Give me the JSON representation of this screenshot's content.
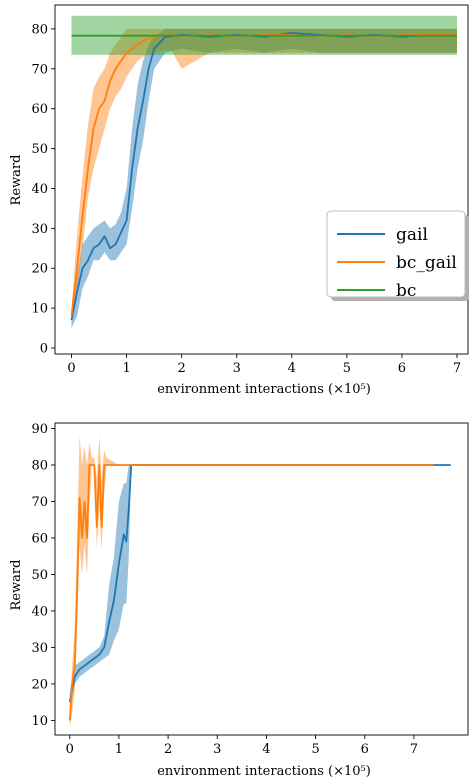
{
  "colors": {
    "gail": "#1f77b4",
    "bc_gail": "#ff7f0e",
    "bc": "#2ca02c"
  },
  "chart_data": [
    {
      "type": "line",
      "xlabel": "environment interactions (×10⁵)",
      "ylabel": "Reward",
      "xlim": [
        -0.3,
        7.2
      ],
      "ylim": [
        -1.5,
        86
      ],
      "xticks": [
        "0",
        "1",
        "2",
        "3",
        "4",
        "5",
        "6",
        "7"
      ],
      "yticks": [
        "0",
        "10",
        "20",
        "30",
        "40",
        "50",
        "60",
        "70",
        "80"
      ],
      "grid": false,
      "legend": {
        "placement": "center-right",
        "entries": [
          "gail",
          "bc_gail",
          "bc"
        ]
      },
      "series": [
        {
          "name": "gail",
          "color": "#1f77b4",
          "x": [
            0,
            0.1,
            0.2,
            0.3,
            0.4,
            0.5,
            0.6,
            0.7,
            0.8,
            0.9,
            1.0,
            1.1,
            1.2,
            1.3,
            1.4,
            1.5,
            1.7,
            2.0,
            2.5,
            3.0,
            3.5,
            4.0,
            4.5,
            5.0,
            5.5,
            6.0,
            6.5,
            7.0
          ],
          "y": [
            7,
            14,
            20,
            22,
            25,
            26,
            28,
            25,
            26,
            29,
            32,
            45,
            55,
            62,
            70,
            75,
            78,
            78.5,
            78,
            78.5,
            78,
            79,
            78.5,
            78,
            78.5,
            78,
            78.5,
            78.5
          ],
          "lower": [
            5,
            8,
            15,
            18,
            22,
            22,
            24,
            22,
            22,
            24,
            26,
            35,
            45,
            52,
            62,
            70,
            74,
            75,
            74,
            75,
            74,
            75,
            74,
            74,
            74,
            74,
            74,
            74
          ],
          "upper": [
            10,
            18,
            26,
            28,
            30,
            31,
            32,
            30,
            31,
            34,
            40,
            55,
            66,
            72,
            76,
            78,
            80,
            80,
            80,
            80,
            80,
            80,
            80,
            80,
            80,
            80,
            80,
            80
          ]
        },
        {
          "name": "bc_gail",
          "color": "#ff7f0e",
          "x": [
            0,
            0.1,
            0.2,
            0.3,
            0.4,
            0.5,
            0.6,
            0.7,
            0.8,
            0.9,
            1.0,
            1.1,
            1.2,
            1.3,
            1.5,
            1.8,
            2.0,
            2.5,
            3.0,
            3.5,
            4.0,
            4.5,
            5.0,
            5.5,
            6.0,
            6.5,
            7.0
          ],
          "y": [
            8,
            20,
            33,
            45,
            55,
            60,
            62,
            67,
            70,
            72,
            74,
            75,
            76,
            77,
            78,
            78.5,
            78,
            78.5,
            78,
            78.5,
            78.5,
            78,
            78.5,
            78,
            78.5,
            78.5,
            78.5
          ],
          "lower": [
            6,
            14,
            25,
            38,
            45,
            50,
            55,
            60,
            63,
            65,
            68,
            70,
            72,
            73,
            74,
            75,
            70,
            74,
            74,
            74,
            74,
            74,
            74,
            74,
            74,
            74,
            74
          ],
          "upper": [
            10,
            28,
            43,
            56,
            65,
            68,
            70,
            74,
            76,
            78,
            80,
            80,
            80,
            80,
            80,
            80,
            80,
            80,
            80,
            80,
            80,
            80,
            80,
            80,
            80,
            80,
            80
          ]
        },
        {
          "name": "bc",
          "color": "#2ca02c",
          "x": [
            0,
            7
          ],
          "y": [
            78.3,
            78.3
          ],
          "lower": [
            73.5,
            73.5
          ],
          "upper": [
            83.3,
            83.3
          ]
        }
      ]
    },
    {
      "type": "line",
      "xlabel": "environment interactions (×10⁵)",
      "ylabel": "Reward",
      "xlim": [
        -0.3,
        8.1
      ],
      "ylim": [
        6,
        91.5
      ],
      "xticks": [
        "0",
        "1",
        "2",
        "3",
        "4",
        "5",
        "6",
        "7"
      ],
      "yticks": [
        "10",
        "20",
        "30",
        "40",
        "50",
        "60",
        "70",
        "80",
        "90"
      ],
      "grid": false,
      "series": [
        {
          "name": "gail",
          "color": "#1f77b4",
          "x": [
            0,
            0.1,
            0.2,
            0.3,
            0.4,
            0.5,
            0.6,
            0.7,
            0.8,
            0.9,
            1.0,
            1.1,
            1.15,
            1.2,
            1.25,
            2,
            3,
            4,
            5,
            6,
            7,
            7.75
          ],
          "y": [
            15,
            22,
            24,
            25,
            26,
            27,
            28,
            30,
            37,
            43,
            53,
            61,
            59,
            68,
            80,
            80,
            80,
            80,
            80,
            80,
            80,
            80
          ],
          "lower": [
            13,
            20,
            22,
            23,
            24,
            25,
            26,
            27,
            28,
            32,
            35,
            42,
            42,
            55,
            80,
            80,
            80,
            80,
            80,
            80,
            80,
            80
          ],
          "upper": [
            18,
            25,
            26,
            27,
            28,
            29,
            30,
            33,
            47,
            55,
            70,
            75,
            75,
            80,
            80,
            80,
            80,
            80,
            80,
            80,
            80,
            80
          ]
        },
        {
          "name": "bc_gail",
          "color": "#ff7f0e",
          "x": [
            0,
            0.05,
            0.1,
            0.15,
            0.2,
            0.25,
            0.3,
            0.35,
            0.4,
            0.45,
            0.5,
            0.55,
            0.6,
            0.65,
            0.7,
            0.75,
            1,
            2,
            3,
            4,
            5,
            6,
            7,
            7.4
          ],
          "y": [
            10,
            20,
            25,
            45,
            71,
            60,
            70,
            60,
            80,
            80,
            80,
            63,
            80,
            63,
            80,
            80,
            80,
            80,
            80,
            80,
            80,
            80,
            80,
            80
          ],
          "lower": [
            8,
            12,
            18,
            35,
            58,
            50,
            58,
            50,
            68,
            80,
            80,
            57,
            68,
            57,
            72,
            80,
            80,
            80,
            80,
            80,
            80,
            80,
            80,
            80
          ],
          "upper": [
            14,
            25,
            35,
            60,
            88,
            80,
            85,
            80,
            86,
            82,
            82,
            76,
            88,
            76,
            84,
            82,
            80,
            80,
            80,
            80,
            80,
            80,
            80,
            80
          ]
        }
      ]
    }
  ]
}
